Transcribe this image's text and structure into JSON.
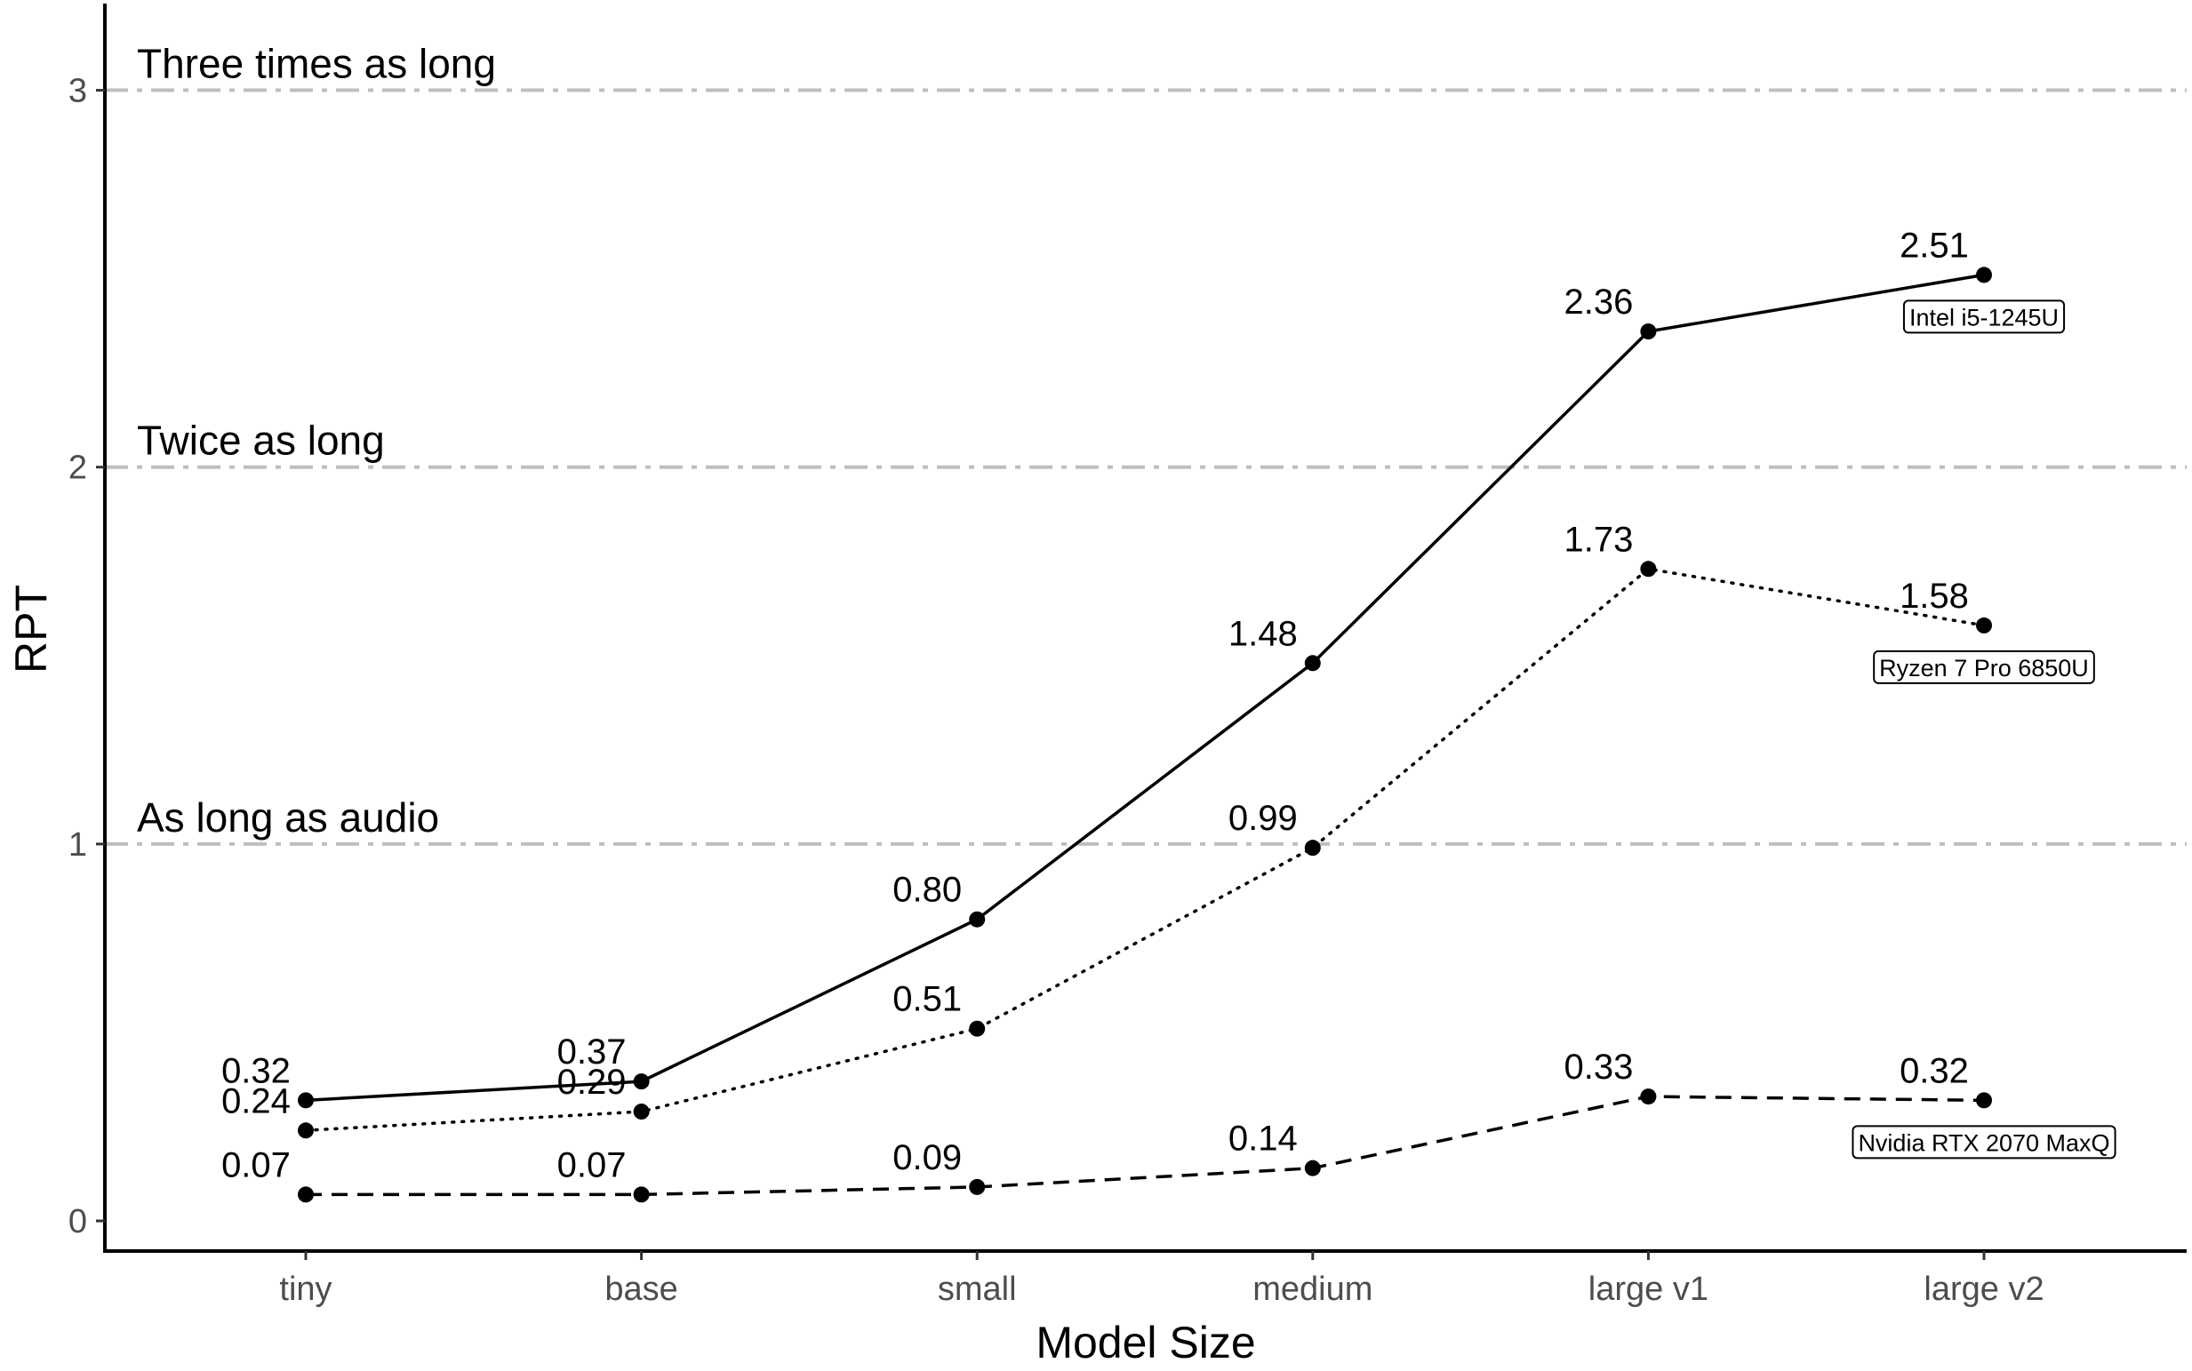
{
  "chart_data": {
    "type": "line",
    "xlabel": "Model Size",
    "ylabel": "RPT",
    "categories": [
      "tiny",
      "base",
      "small",
      "medium",
      "large v1",
      "large v2"
    ],
    "ylim": [
      -0.08,
      3.23
    ],
    "yticks": [
      0,
      1,
      2,
      3
    ],
    "grid": false,
    "series": [
      {
        "name": "Intel i5-1245U",
        "line_style": "solid",
        "values": [
          0.32,
          0.37,
          0.8,
          1.48,
          2.36,
          2.51
        ],
        "labels": [
          "0.32",
          "0.37",
          "0.80",
          "1.48",
          "2.36",
          "2.51"
        ]
      },
      {
        "name": "Ryzen 7 Pro 6850U",
        "line_style": "dotted",
        "values": [
          0.24,
          0.29,
          0.51,
          0.99,
          1.73,
          1.58
        ],
        "labels": [
          "0.24",
          "0.29",
          "0.51",
          "0.99",
          "1.73",
          "1.58"
        ]
      },
      {
        "name": "Nvidia RTX 2070 MaxQ",
        "line_style": "dashed",
        "values": [
          0.07,
          0.07,
          0.09,
          0.14,
          0.33,
          0.32
        ],
        "labels": [
          "0.07",
          "0.07",
          "0.09",
          "0.14",
          "0.33",
          "0.32"
        ]
      }
    ],
    "reference_lines": [
      {
        "y": 1,
        "label": "As long as audio"
      },
      {
        "y": 2,
        "label": "Twice as long"
      },
      {
        "y": 3,
        "label": "Three times as long"
      }
    ],
    "colors": {
      "lines": "#000000",
      "reference": "#bebebe",
      "ticks": "#4d4d4d"
    }
  }
}
